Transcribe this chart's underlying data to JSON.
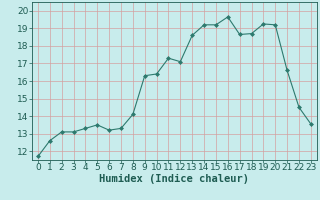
{
  "x": [
    0,
    1,
    2,
    3,
    4,
    5,
    6,
    7,
    8,
    9,
    10,
    11,
    12,
    13,
    14,
    15,
    16,
    17,
    18,
    19,
    20,
    21,
    22,
    23
  ],
  "y": [
    11.7,
    12.6,
    13.1,
    13.1,
    13.3,
    13.5,
    13.2,
    13.3,
    14.1,
    16.3,
    16.4,
    17.3,
    17.1,
    18.6,
    19.2,
    19.2,
    19.65,
    18.65,
    18.7,
    19.25,
    19.2,
    16.6,
    14.5,
    13.55
  ],
  "line_color": "#2d7a6e",
  "marker": "D",
  "marker_size": 2,
  "bg_color": "#c8ecec",
  "grid_color": "#d4a0a0",
  "xlabel": "Humidex (Indice chaleur)",
  "xlim": [
    -0.5,
    23.5
  ],
  "ylim": [
    11.5,
    20.5
  ],
  "yticks": [
    12,
    13,
    14,
    15,
    16,
    17,
    18,
    19,
    20
  ],
  "xticks": [
    0,
    1,
    2,
    3,
    4,
    5,
    6,
    7,
    8,
    9,
    10,
    11,
    12,
    13,
    14,
    15,
    16,
    17,
    18,
    19,
    20,
    21,
    22,
    23
  ],
  "line_color_dark": "#1e5c52",
  "tick_color": "#1e5c52",
  "label_fontsize": 6.5,
  "xlabel_fontsize": 7.5
}
